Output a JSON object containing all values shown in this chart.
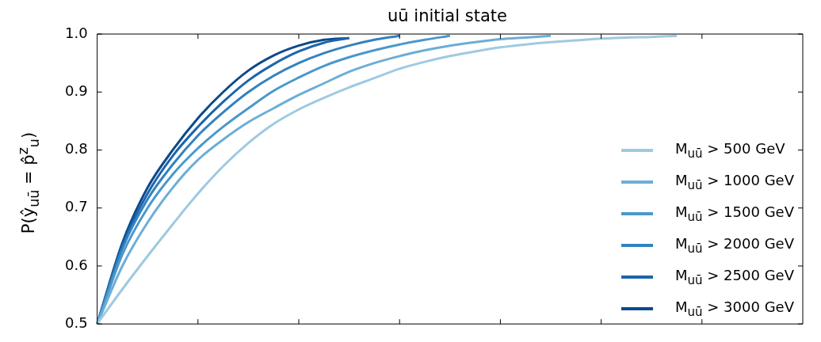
{
  "chart_data": {
    "type": "line",
    "title": "uū initial state",
    "ylabel": "P(ŷ$_{uū}$ = p̂$^{z}$$_{u}$)",
    "categories": [
      null,
      null,
      null,
      null,
      null,
      null,
      null,
      null,
      null,
      null,
      null,
      null,
      null,
      null,
      null,
      null,
      null,
      null,
      null,
      null,
      null,
      null,
      null,
      null,
      null,
      null,
      null,
      null,
      null
    ],
    "ylim": [
      0.5,
      1.0
    ],
    "yticks": [
      {
        "value": 0.5,
        "label": "0.5"
      },
      {
        "value": 0.6,
        "label": "0.6"
      },
      {
        "value": 0.7,
        "label": "0.7"
      },
      {
        "value": 0.8,
        "label": "0.8"
      },
      {
        "value": 0.9,
        "label": "0.9"
      },
      {
        "value": 1.0,
        "label": "1.0"
      }
    ],
    "grid": false,
    "legend": "right",
    "marker": "none",
    "line_style": "solid",
    "series": [
      {
        "name": "M$_{uū}$ > 500 GeV",
        "color": "#9ecae1",
        "values": [
          0.5,
          0.56,
          0.617,
          0.672,
          0.725,
          0.772,
          0.812,
          0.845,
          0.87,
          0.89,
          0.908,
          0.924,
          0.94,
          0.952,
          0.962,
          0.97,
          0.977,
          0.982,
          0.986,
          0.989,
          0.992,
          0.994,
          0.995,
          0.997,
          null,
          null,
          null,
          null,
          null
        ]
      },
      {
        "name": "M$_{uū}$ > 1000 GeV",
        "color": "#6baed6",
        "values": [
          0.5,
          0.6,
          0.675,
          0.735,
          0.783,
          0.818,
          0.848,
          0.872,
          0.895,
          0.915,
          0.935,
          0.95,
          0.962,
          0.972,
          0.98,
          0.986,
          0.991,
          0.994,
          0.997,
          null,
          null,
          null,
          null,
          null,
          null,
          null,
          null,
          null,
          null
        ]
      },
      {
        "name": "M$_{uū}$ > 1500 GeV",
        "color": "#4a98cc",
        "values": [
          0.5,
          0.62,
          0.7,
          0.758,
          0.803,
          0.84,
          0.872,
          0.902,
          0.925,
          0.945,
          0.96,
          0.972,
          0.982,
          0.99,
          0.997,
          null,
          null,
          null,
          null,
          null,
          null,
          null,
          null,
          null,
          null,
          null,
          null,
          null,
          null
        ]
      },
      {
        "name": "M$_{uū}$ > 2000 GeV",
        "color": "#3282bf",
        "values": [
          0.5,
          0.63,
          0.715,
          0.775,
          0.825,
          0.865,
          0.9,
          0.928,
          0.95,
          0.967,
          0.98,
          0.99,
          0.997,
          null,
          null,
          null,
          null,
          null,
          null,
          null,
          null,
          null,
          null,
          null,
          null,
          null,
          null,
          null,
          null
        ]
      },
      {
        "name": "M$_{uū}$ > 2500 GeV",
        "color": "#1c65ab",
        "values": [
          0.5,
          0.635,
          0.725,
          0.79,
          0.84,
          0.883,
          0.92,
          0.948,
          0.97,
          0.985,
          0.993,
          null,
          null,
          null,
          null,
          null,
          null,
          null,
          null,
          null,
          null,
          null,
          null,
          null,
          null,
          null,
          null,
          null,
          null
        ]
      },
      {
        "name": "M$_{uū}$ > 3000 GeV",
        "color": "#0b4a8b",
        "values": [
          0.5,
          0.64,
          0.735,
          0.8,
          0.855,
          0.9,
          0.937,
          0.963,
          0.98,
          0.99,
          0.993,
          null,
          null,
          null,
          null,
          null,
          null,
          null,
          null,
          null,
          null,
          null,
          null,
          null,
          null,
          null,
          null,
          null,
          null
        ]
      }
    ]
  }
}
